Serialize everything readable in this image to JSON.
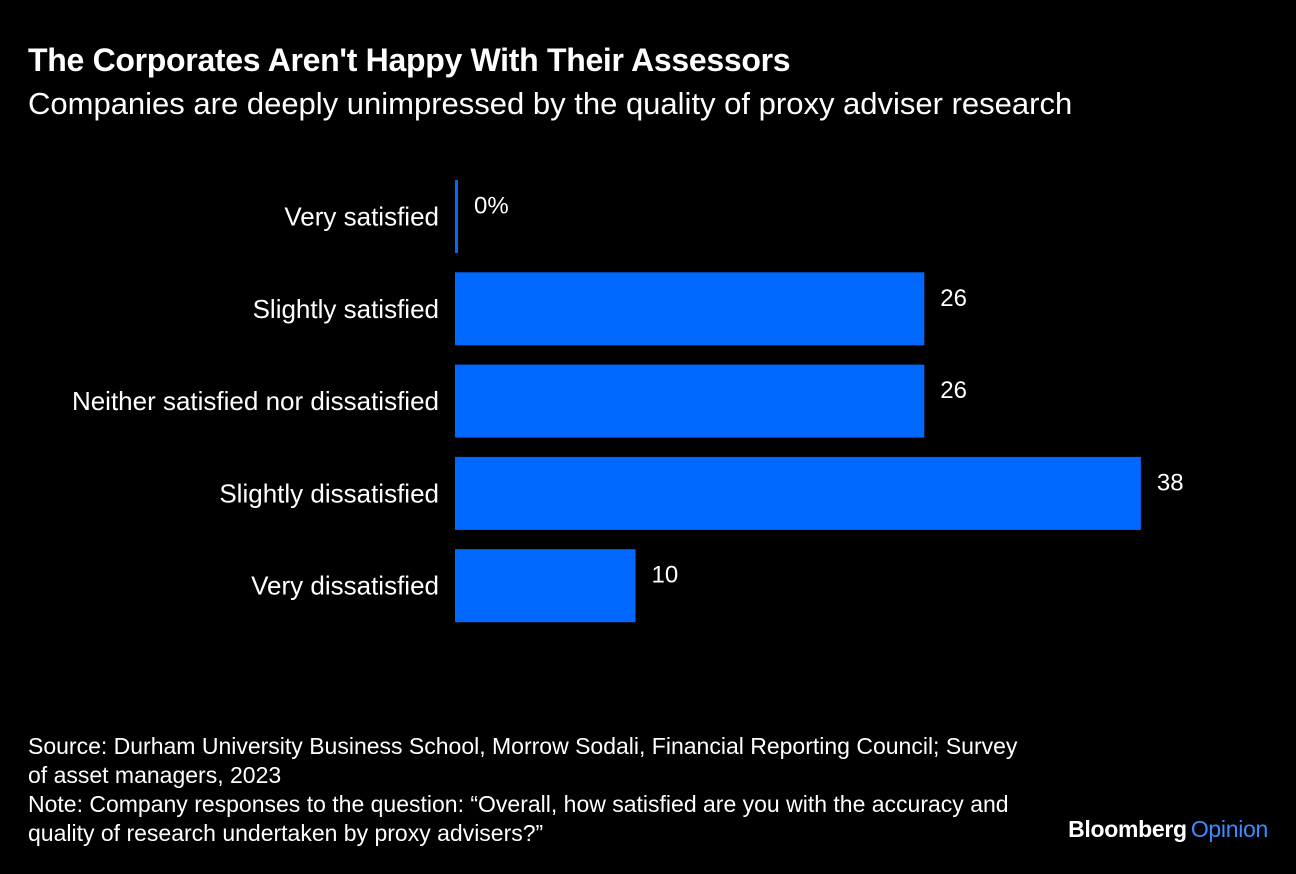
{
  "header": {
    "title": "The Corporates Aren't Happy With Their Assessors",
    "subtitle": "Companies are deeply unimpressed by the quality of proxy adviser research"
  },
  "chart_data": {
    "type": "bar",
    "orientation": "horizontal",
    "categories": [
      "Very satisfied",
      "Slightly satisfied",
      "Neither satisfied nor dissatisfied",
      "Slightly dissatisfied",
      "Very dissatisfied"
    ],
    "values": [
      0,
      26,
      26,
      38,
      10
    ],
    "value_labels": [
      "0%",
      "26",
      "26",
      "38",
      "10"
    ],
    "unit": "%",
    "bar_color": "#0068FF",
    "grid": false,
    "legend": "none"
  },
  "footer": {
    "source": "Source: Durham University Business School, Morrow Sodali, Financial Reporting Council; Survey of asset managers, 2023",
    "note": "Note: Company responses to the question: “Overall, how satisfied are you with the accuracy and quality of research undertaken by proxy advisers?”"
  },
  "brand": {
    "name": "Bloomberg",
    "section": "Opinion",
    "section_color": "#3D8BFF"
  }
}
